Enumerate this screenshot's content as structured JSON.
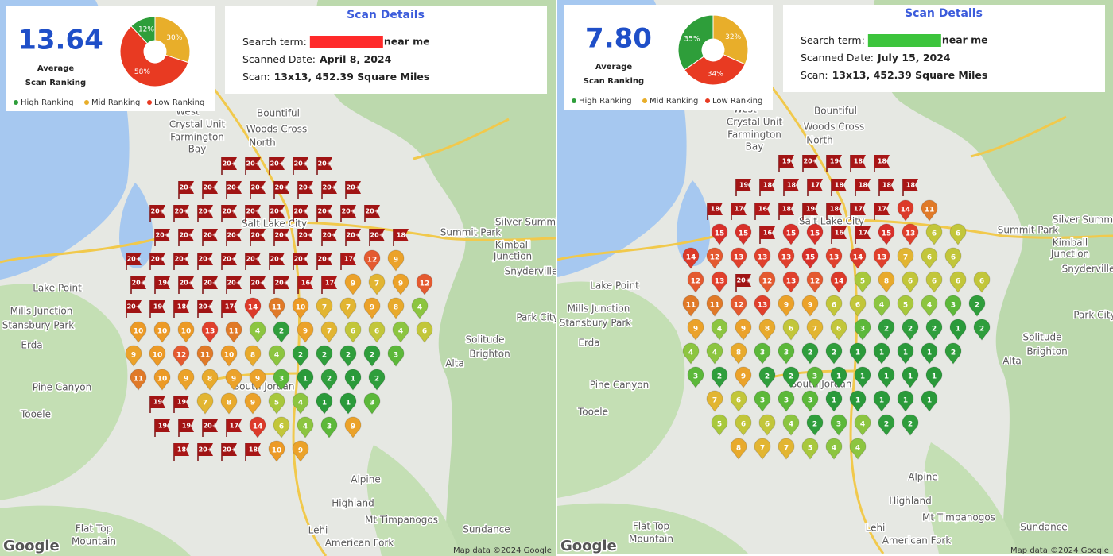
{
  "map": {
    "labels": [
      "West",
      "Crystal Unit",
      "Farmington",
      "Bay",
      "Bountiful",
      "Woods Cross",
      "North",
      "Salt Lake City",
      "Silver Summit",
      "Summit Park",
      "Kimball",
      "Junction",
      "Snyderville",
      "Lake Point",
      "Mills Junction",
      "Stansbury Park",
      "Erda",
      "Pine Canyon",
      "Tooele",
      "Solitude",
      "Brighton",
      "Alta",
      "Park City",
      "South Jordan",
      "Alpine",
      "Highland",
      "Lehi",
      "American Fork",
      "Mt Timpanogos",
      "Flat Top",
      "Mountain",
      "Sundance"
    ],
    "attribution": "Map data ©2024 Google",
    "logo": "Google",
    "marker_colors": [
      "#2a9a3a",
      "#2f9e3c",
      "#5cb83a",
      "#8cc540",
      "#a8c83c",
      "#c2c63a",
      "#e2b532",
      "#e8aa2c",
      "#eba22a",
      "#ec9a26",
      "#e07a28",
      "#e45a30",
      "#e0402c",
      "#dc3a2a",
      "#d8302a",
      "#b01818",
      "#ac1717",
      "#a81616",
      "#a21414",
      "#a01414"
    ]
  },
  "panels": [
    {
      "score": "13.64",
      "score_caption": [
        "Average",
        "Scan Ranking"
      ],
      "pie": {
        "type": "pie",
        "values": [
          12,
          30,
          58
        ],
        "value_labels": [
          "12%",
          "30%",
          "58%"
        ],
        "colors": [
          "#2e9e3a",
          "#e8ae2a",
          "#e83a22"
        ]
      },
      "legend": [
        "High Ranking",
        "Mid Ranking",
        "Low Ranking"
      ],
      "details": {
        "title": "Scan Details",
        "search_label": "Search term:",
        "search_suffix": "near me",
        "redaction_color": "#ff2a2a",
        "date_label": "Scanned Date:",
        "date": "April 8, 2024",
        "scan_label": "Scan:",
        "scan": "13x13, 452.39 Square Miles"
      },
      "grid": [
        [
          null,
          null,
          null,
          null,
          "20+",
          "20+",
          "20+",
          "20+",
          "20+",
          null,
          null,
          null,
          null
        ],
        [
          null,
          null,
          "20+",
          "20+",
          "20+",
          "20+",
          "20+",
          "20+",
          "20+",
          "20+",
          null,
          null,
          null
        ],
        [
          null,
          "20+",
          "20+",
          "20+",
          "20+",
          "20+",
          "20+",
          "20+",
          "20+",
          "20+",
          "20+",
          null,
          null
        ],
        [
          null,
          "20+",
          "20+",
          "20+",
          "20+",
          "20+",
          "20+",
          "20+",
          "20+",
          "20+",
          "20+",
          "18",
          null
        ],
        [
          "20+",
          "20+",
          "20+",
          "20+",
          "20+",
          "20+",
          "20+",
          "20+",
          "20+",
          "17",
          "12",
          "9",
          null
        ],
        [
          "20+",
          "19",
          "20+",
          "20+",
          "20+",
          "20+",
          "20+",
          "16",
          "17",
          "9",
          "7",
          "9",
          "12"
        ],
        [
          "20+",
          "19",
          "18",
          "20+",
          "17",
          "14",
          "11",
          "10",
          "7",
          "7",
          "9",
          "8",
          "4"
        ],
        [
          "10",
          "10",
          "10",
          "13",
          "11",
          "4",
          "2",
          "9",
          "7",
          "6",
          "6",
          "4",
          "6"
        ],
        [
          "9",
          "10",
          "12",
          "11",
          "10",
          "8",
          "4",
          "2",
          "2",
          "2",
          "2",
          "3",
          null
        ],
        [
          "11",
          "10",
          "9",
          "8",
          "9",
          "9",
          "3",
          "1",
          "2",
          "1",
          "2",
          null,
          null
        ],
        [
          null,
          "19",
          "19",
          "7",
          "8",
          "9",
          "5",
          "4",
          "1",
          "1",
          "3",
          null,
          null
        ],
        [
          null,
          "19",
          "19",
          "20+",
          "17",
          "14",
          "6",
          "4",
          "3",
          "9",
          null,
          null,
          null
        ],
        [
          null,
          null,
          "18",
          "20+",
          "20+",
          "18",
          "10",
          "9",
          null,
          null,
          null,
          null,
          null
        ]
      ]
    },
    {
      "score": "7.80",
      "score_caption": [
        "Average",
        "Scan Ranking"
      ],
      "pie": {
        "type": "pie",
        "values": [
          35,
          32,
          34
        ],
        "value_labels": [
          "35%",
          "32%",
          "34%"
        ],
        "colors": [
          "#2e9e3a",
          "#e8ae2a",
          "#e83a22"
        ]
      },
      "legend": [
        "High Ranking",
        "Mid Ranking",
        "Low Ranking"
      ],
      "details": {
        "title": "Scan Details",
        "search_label": "Search term:",
        "search_suffix": "near me",
        "redaction_color": "#3cc43c",
        "date_label": "Scanned Date:",
        "date": "July 15, 2024",
        "scan_label": "Scan:",
        "scan": "13x13, 452.39 Square Miles"
      },
      "grid": [
        [
          null,
          null,
          null,
          null,
          "19",
          "20+",
          "19",
          "18",
          "18",
          null,
          null,
          null,
          null
        ],
        [
          null,
          null,
          "19",
          "18",
          "18",
          "17",
          "18",
          "18",
          "18",
          "18",
          null,
          null,
          null
        ],
        [
          null,
          "18",
          "17",
          "16",
          "18",
          "19",
          "18",
          "17",
          "17",
          "14",
          "11",
          null,
          null
        ],
        [
          null,
          "15",
          "15",
          "16",
          "15",
          "15",
          "16",
          "17",
          "15",
          "13",
          "6",
          "6",
          null
        ],
        [
          "14",
          "12",
          "13",
          "13",
          "13",
          "15",
          "13",
          "14",
          "13",
          "7",
          "6",
          "6",
          null
        ],
        [
          "12",
          "13",
          "20+",
          "12",
          "13",
          "12",
          "14",
          "5",
          "8",
          "6",
          "6",
          "6",
          "6"
        ],
        [
          "11",
          "11",
          "12",
          "13",
          "9",
          "9",
          "6",
          "6",
          "4",
          "5",
          "4",
          "3",
          "2"
        ],
        [
          "9",
          "4",
          "9",
          "8",
          "6",
          "7",
          "6",
          "3",
          "2",
          "2",
          "2",
          "1",
          "2"
        ],
        [
          "4",
          "4",
          "8",
          "3",
          "3",
          "2",
          "2",
          "1",
          "1",
          "1",
          "1",
          "2",
          null
        ],
        [
          "3",
          "2",
          "9",
          "2",
          "2",
          "3",
          "1",
          "1",
          "1",
          "1",
          "1",
          null,
          null
        ],
        [
          null,
          "7",
          "6",
          "3",
          "3",
          "3",
          "1",
          "1",
          "1",
          "1",
          "1",
          null,
          null
        ],
        [
          null,
          "5",
          "6",
          "6",
          "4",
          "2",
          "3",
          "4",
          "2",
          "2",
          null,
          null,
          null
        ],
        [
          null,
          null,
          "8",
          "7",
          "7",
          "5",
          "4",
          "4",
          null,
          null,
          null,
          null,
          null
        ]
      ]
    }
  ]
}
